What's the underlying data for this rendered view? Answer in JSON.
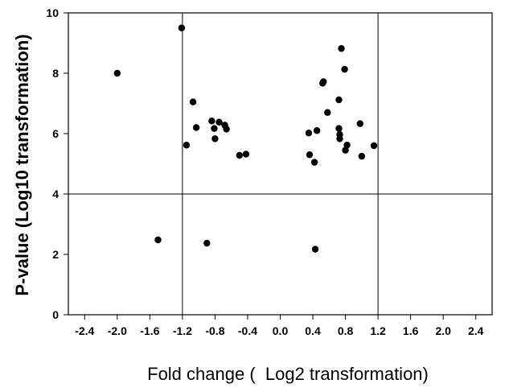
{
  "chart_data": {
    "type": "scatter",
    "title": "",
    "xlabel": "Fold change (  Log2 transformation)",
    "ylabel": "P-value (Log10 transformation)",
    "xlim": [
      -2.6,
      2.6
    ],
    "ylim": [
      0,
      10
    ],
    "x_ticks": [
      "-2.4",
      "-2.0",
      "-1.6",
      "-1.2",
      "-0.8",
      "-0.4",
      "0.0",
      "0.4",
      "0.8",
      "1.2",
      "1.6",
      "2.0",
      "2.4"
    ],
    "x_tick_values": [
      -2.4,
      -2.0,
      -1.6,
      -1.2,
      -0.8,
      -0.4,
      0.0,
      0.4,
      0.8,
      1.2,
      1.6,
      2.0,
      2.4
    ],
    "y_ticks": [
      "0",
      "2",
      "4",
      "6",
      "8",
      "10"
    ],
    "y_tick_values": [
      0,
      2,
      4,
      6,
      8,
      10
    ],
    "reference_lines": {
      "vertical": [
        -1.2,
        1.2
      ],
      "horizontal": [
        4
      ]
    },
    "grid": false,
    "marker_color": "#000000",
    "points": [
      {
        "x": -2.0,
        "y": 8.0
      },
      {
        "x": -1.21,
        "y": 9.5
      },
      {
        "x": -1.5,
        "y": 2.48
      },
      {
        "x": -1.15,
        "y": 5.62
      },
      {
        "x": -1.07,
        "y": 7.05
      },
      {
        "x": -1.03,
        "y": 6.2
      },
      {
        "x": -0.9,
        "y": 2.37
      },
      {
        "x": -0.84,
        "y": 6.42
      },
      {
        "x": -0.81,
        "y": 6.17
      },
      {
        "x": -0.8,
        "y": 5.83
      },
      {
        "x": -0.75,
        "y": 6.38
      },
      {
        "x": -0.68,
        "y": 6.28
      },
      {
        "x": -0.66,
        "y": 6.15
      },
      {
        "x": -0.5,
        "y": 5.28
      },
      {
        "x": -0.42,
        "y": 5.32
      },
      {
        "x": 0.35,
        "y": 6.02
      },
      {
        "x": 0.36,
        "y": 5.3
      },
      {
        "x": 0.42,
        "y": 5.05
      },
      {
        "x": 0.43,
        "y": 2.17
      },
      {
        "x": 0.45,
        "y": 6.1
      },
      {
        "x": 0.52,
        "y": 7.67
      },
      {
        "x": 0.53,
        "y": 7.72
      },
      {
        "x": 0.58,
        "y": 6.7
      },
      {
        "x": 0.72,
        "y": 7.12
      },
      {
        "x": 0.72,
        "y": 6.17
      },
      {
        "x": 0.73,
        "y": 5.97
      },
      {
        "x": 0.73,
        "y": 5.83
      },
      {
        "x": 0.75,
        "y": 8.82
      },
      {
        "x": 0.79,
        "y": 8.13
      },
      {
        "x": 0.8,
        "y": 5.45
      },
      {
        "x": 0.82,
        "y": 5.62
      },
      {
        "x": 0.98,
        "y": 6.33
      },
      {
        "x": 1.0,
        "y": 5.25
      },
      {
        "x": 1.15,
        "y": 5.6
      }
    ]
  }
}
